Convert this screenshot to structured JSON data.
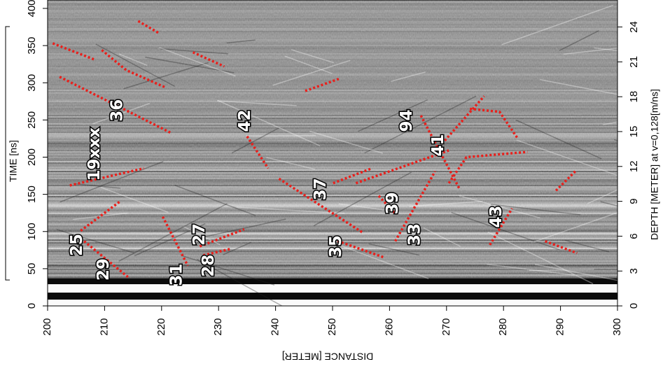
{
  "chart_data": {
    "type": "radargram",
    "xlabel": "DISTANCE [METER]",
    "ylabel": "TIME [ns]",
    "y2label": "DEPTH [METER] at v=0,128[m/ns]",
    "xlim": [
      200,
      300
    ],
    "xticks": [
      200,
      210,
      220,
      230,
      240,
      250,
      260,
      270,
      280,
      290,
      300
    ],
    "ylim": [
      0,
      400
    ],
    "yticks": [
      0,
      50,
      100,
      150,
      200,
      250,
      300,
      350,
      400
    ],
    "y2lim": [
      0,
      25.6
    ],
    "y2ticks": [
      0,
      3,
      6,
      9,
      12,
      15,
      18,
      21,
      24
    ],
    "line_color": "#e8201c",
    "lines": [
      {
        "d": [
          200.9,
          208.3
        ],
        "t": [
          353,
          331
        ]
      },
      {
        "d": [
          209.5,
          213.8,
          220.6
        ],
        "t": [
          344,
          317,
          294
        ]
      },
      {
        "d": [
          202.1,
          221.8
        ],
        "t": [
          308,
          232
        ]
      },
      {
        "d": [
          215.9,
          219.7
        ],
        "t": [
          383,
          366
        ]
      },
      {
        "d": [
          225.5,
          231.0
        ],
        "t": [
          341,
          322
        ]
      },
      {
        "d": [
          245.2,
          251.4
        ],
        "t": [
          289,
          306
        ]
      },
      {
        "d": [
          203.9,
          216.9
        ],
        "t": [
          162,
          185
        ]
      },
      {
        "d": [
          205.8,
          212.8
        ],
        "t": [
          101,
          141
        ]
      },
      {
        "d": [
          206.4,
          214.4
        ],
        "t": [
          87,
          37
        ]
      },
      {
        "d": [
          220.2,
          224.6
        ],
        "t": [
          120,
          54
        ]
      },
      {
        "d": [
          226.7,
          234.5
        ],
        "t": [
          80,
          103
        ]
      },
      {
        "d": [
          227.3,
          232.3
        ],
        "t": [
          68,
          77
        ]
      },
      {
        "d": [
          235.0,
          238.7
        ],
        "t": [
          228,
          185
        ]
      },
      {
        "d": [
          240.6,
          255.4
        ],
        "t": [
          171,
          98
        ]
      },
      {
        "d": [
          249.5,
          259.1
        ],
        "t": [
          91,
          65
        ]
      },
      {
        "d": [
          250.1,
          256.9
        ],
        "t": [
          165,
          185
        ]
      },
      {
        "d": [
          254.1,
          270.4
        ],
        "t": [
          165,
          209
        ]
      },
      {
        "d": [
          258.1,
          261.0
        ],
        "t": [
          148,
          124
        ]
      },
      {
        "d": [
          261.0,
          268.0
        ],
        "t": [
          87,
          181
        ]
      },
      {
        "d": [
          265.5,
          272.3
        ],
        "t": [
          256,
          157
        ]
      },
      {
        "d": [
          269.2,
          276.6
        ],
        "t": [
          218,
          282
        ]
      },
      {
        "d": [
          274.1,
          279.3,
          282.5
        ],
        "t": [
          265,
          261,
          225
        ]
      },
      {
        "d": [
          270.4,
          273.5,
          284.2
        ],
        "t": [
          165,
          200,
          207
        ]
      },
      {
        "d": [
          277.6,
          281.5
        ],
        "t": [
          82,
          131
        ]
      },
      {
        "d": [
          287.3,
          292.9
        ],
        "t": [
          87,
          71
        ]
      },
      {
        "d": [
          289.2,
          292.6
        ],
        "t": [
          155,
          181
        ]
      }
    ],
    "annotations": [
      {
        "text": "36",
        "d": 212.3,
        "t": 263
      },
      {
        "text": "19xxx",
        "d": 208.3,
        "t": 204
      },
      {
        "text": "25",
        "d": 205.2,
        "t": 82
      },
      {
        "text": "29",
        "d": 209.9,
        "t": 49
      },
      {
        "text": "31",
        "d": 222.7,
        "t": 42
      },
      {
        "text": "27",
        "d": 226.7,
        "t": 96
      },
      {
        "text": "28",
        "d": 228.3,
        "t": 54
      },
      {
        "text": "42",
        "d": 234.7,
        "t": 249
      },
      {
        "text": "35",
        "d": 250.7,
        "t": 80
      },
      {
        "text": "37",
        "d": 248.0,
        "t": 157
      },
      {
        "text": "39",
        "d": 260.6,
        "t": 138
      },
      {
        "text": "33",
        "d": 264.5,
        "t": 96
      },
      {
        "text": "94",
        "d": 263.1,
        "t": 249
      },
      {
        "text": "41",
        "d": 268.6,
        "t": 216
      },
      {
        "text": "43",
        "d": 278.8,
        "t": 120
      }
    ]
  }
}
